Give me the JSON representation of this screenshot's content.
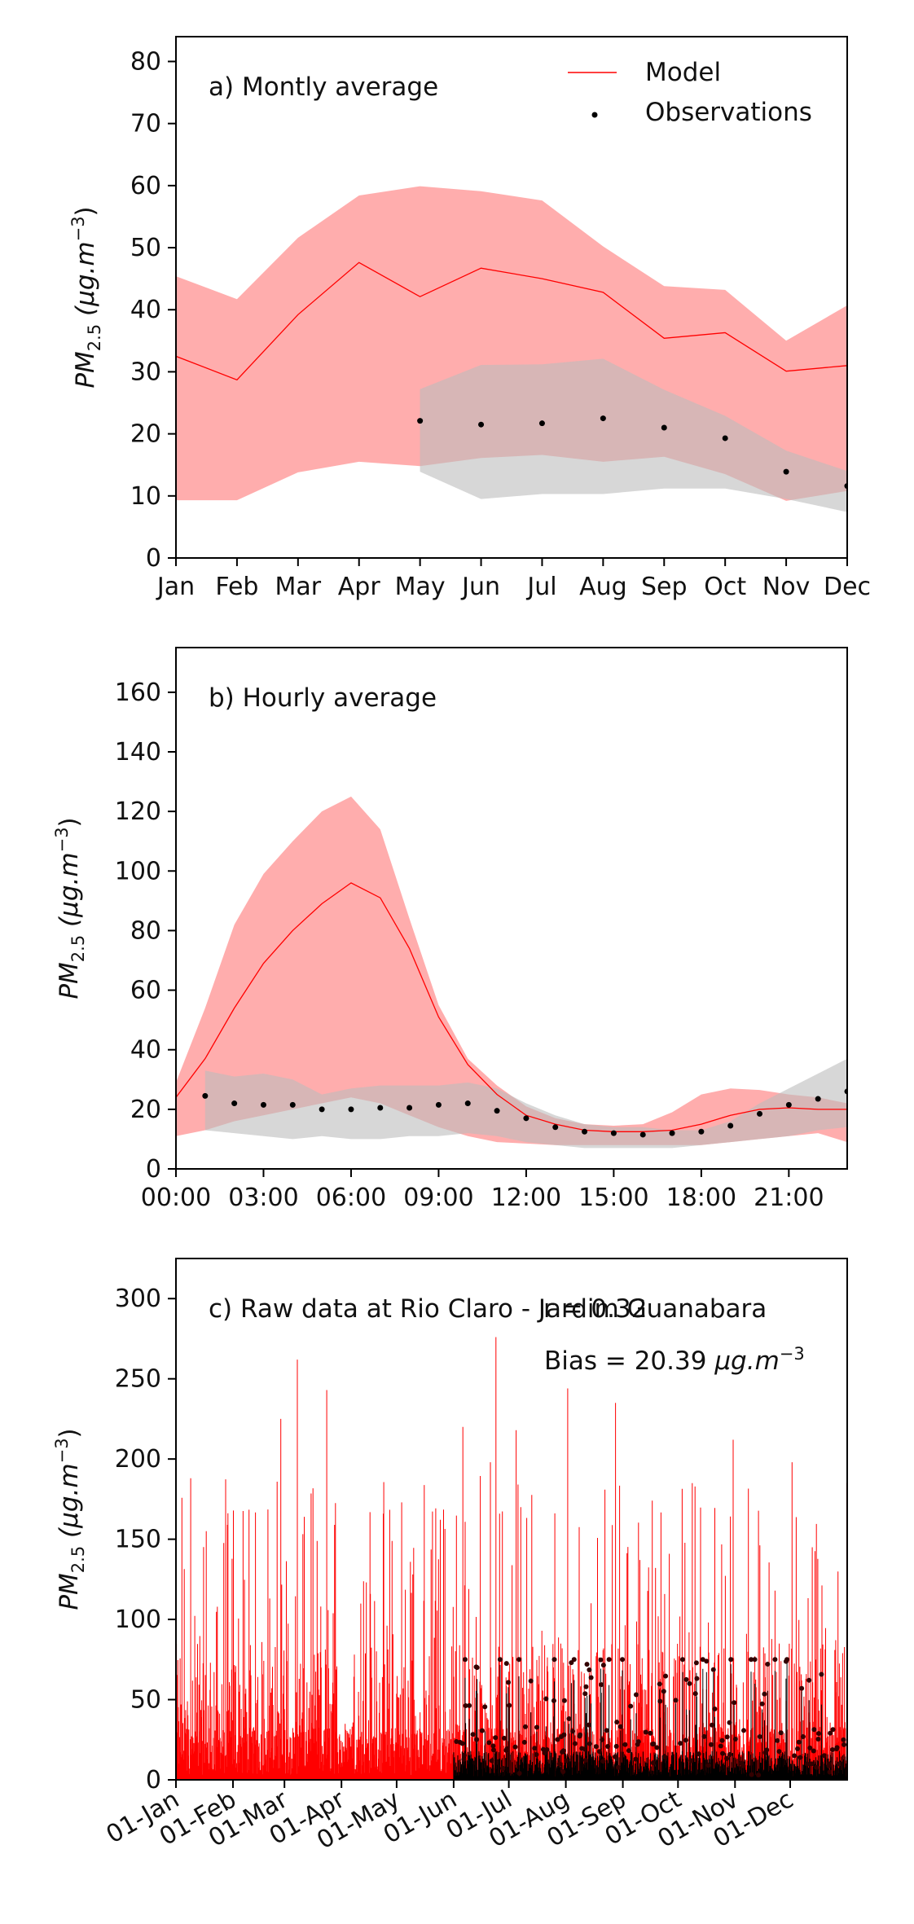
{
  "colors": {
    "model": "#ff0000",
    "model_band": "#ffa8a8",
    "obs": "#000000",
    "obs_band": "#bdbdbd"
  },
  "chart_data": [
    {
      "type": "line",
      "title": "a) Montly average",
      "ylabel_base": "PM",
      "ylabel_sub": "2.5",
      "ylabel_units": "(μg.m",
      "ylabel_exp": "−3",
      "ylabel_close": ")",
      "ylim": [
        0,
        84
      ],
      "yticks": [
        0,
        10,
        20,
        30,
        40,
        50,
        60,
        70,
        80
      ],
      "xlim": [
        1,
        12
      ],
      "categories": [
        "Jan",
        "Feb",
        "Mar",
        "Apr",
        "May",
        "Jun",
        "Jul",
        "Aug",
        "Sep",
        "Oct",
        "Nov",
        "Dec"
      ],
      "legend": {
        "placement": "top-right",
        "model_label": "Model",
        "obs_label": "Observations"
      },
      "model": {
        "x": [
          1,
          2,
          3,
          4,
          5,
          6,
          7,
          8,
          9,
          10,
          11,
          12
        ],
        "mean": [
          32.5,
          28.7,
          39.2,
          47.6,
          42.1,
          46.7,
          45.0,
          42.8,
          35.4,
          36.3,
          30.1,
          31.0
        ],
        "upper": [
          45.4,
          41.7,
          51.6,
          58.4,
          59.9,
          59.1,
          57.6,
          50.2,
          43.8,
          43.2,
          35.0,
          40.7
        ],
        "lower": [
          9.3,
          9.3,
          13.8,
          15.5,
          14.8,
          16.1,
          16.6,
          15.5,
          16.3,
          13.5,
          9.2,
          10.8
        ]
      },
      "observations": {
        "x": [
          5,
          6,
          7,
          8,
          9,
          10,
          11,
          12
        ],
        "mean": [
          22.1,
          21.5,
          21.7,
          22.5,
          21.0,
          19.3,
          13.9,
          11.6
        ],
        "upper": [
          27.2,
          31.1,
          31.2,
          32.1,
          27.1,
          22.9,
          17.3,
          14.0
        ],
        "lower": [
          13.9,
          9.5,
          10.3,
          10.3,
          11.2,
          11.2,
          9.5,
          7.4
        ]
      }
    },
    {
      "type": "line",
      "title": "b) Hourly average",
      "ylabel_base": "PM",
      "ylabel_sub": "2.5",
      "ylabel_units": "(μg.m",
      "ylabel_exp": "−3",
      "ylabel_close": ")",
      "ylim": [
        0,
        175
      ],
      "yticks": [
        0,
        20,
        40,
        60,
        80,
        100,
        120,
        140,
        160
      ],
      "xlim": [
        0,
        23
      ],
      "xtick_values": [
        0,
        3,
        6,
        9,
        12,
        15,
        18,
        21
      ],
      "xtick_labels": [
        "00:00",
        "03:00",
        "06:00",
        "09:00",
        "12:00",
        "15:00",
        "18:00",
        "21:00"
      ],
      "model": {
        "x": [
          0,
          1,
          2,
          3,
          4,
          5,
          6,
          7,
          8,
          9,
          10,
          11,
          12,
          13,
          14,
          15,
          16,
          17,
          18,
          19,
          20,
          21,
          22,
          23
        ],
        "mean": [
          24,
          37,
          54,
          69,
          80,
          89,
          96,
          91,
          74,
          51,
          35,
          25,
          18,
          15,
          13,
          12.5,
          12.5,
          13,
          15,
          18,
          20,
          20.5,
          20,
          20
        ],
        "upper": [
          29,
          54,
          82,
          99,
          110,
          120,
          125,
          114,
          84,
          55,
          37,
          28,
          21,
          17,
          15,
          14.5,
          15,
          19,
          25,
          27,
          26.5,
          25,
          24,
          22
        ],
        "lower": [
          11,
          13,
          16,
          18,
          20,
          22,
          24,
          22,
          18,
          14,
          11,
          9,
          8.5,
          8,
          8,
          8,
          8,
          8,
          8,
          9,
          10,
          11,
          12,
          9
        ]
      },
      "observations": {
        "x": [
          1,
          2,
          3,
          4,
          5,
          6,
          7,
          8,
          9,
          10,
          11,
          12,
          13,
          14,
          15,
          16,
          17,
          18,
          19,
          20,
          21,
          22,
          23
        ],
        "mean": [
          24.5,
          22,
          21.5,
          21.5,
          20,
          20,
          20.5,
          20.5,
          21.5,
          22,
          19.5,
          17,
          14,
          12.5,
          12,
          11.5,
          12,
          12.5,
          14.5,
          18.5,
          21.5,
          23.5,
          26
        ],
        "upper": [
          33,
          31,
          32,
          30,
          25,
          27,
          28,
          28,
          28,
          29,
          27,
          22,
          18,
          15,
          14,
          14,
          13,
          13,
          16,
          22,
          27,
          32,
          37
        ],
        "lower": [
          13,
          12,
          11,
          10,
          11,
          10,
          10,
          11,
          11,
          12,
          11,
          9,
          8,
          7,
          7,
          7,
          7,
          8,
          9,
          10,
          11,
          13,
          14
        ]
      }
    },
    {
      "type": "line",
      "title": "c) Raw data at Rio Claro - Jardim Guanabara",
      "annotation_r": "r = 0.32",
      "annotation_bias_prefix": "Bias = 20.39 ",
      "annotation_bias_units": "μg.m",
      "annotation_bias_exp": "−3",
      "ylabel_base": "PM",
      "ylabel_sub": "2.5",
      "ylabel_units": "(μg.m",
      "ylabel_exp": "−3",
      "ylabel_close": ")",
      "ylim": [
        0,
        325
      ],
      "yticks": [
        0,
        50,
        100,
        150,
        200,
        250,
        300
      ],
      "xlim": [
        1,
        366
      ],
      "xtick_values": [
        1,
        32,
        60,
        91,
        121,
        152,
        182,
        213,
        244,
        274,
        305,
        335
      ],
      "xtick_labels": [
        "01-Jan",
        "01-Feb",
        "01-Mar",
        "01-Apr",
        "01-May",
        "01-Jun",
        "01-Jul",
        "01-Aug",
        "01-Sep",
        "01-Oct",
        "01-Nov",
        "01-Dec"
      ],
      "observations_start_day": 152,
      "model_peaks": [
        {
          "day": 9,
          "value": 188
        },
        {
          "day": 58,
          "value": 225
        },
        {
          "day": 67,
          "value": 262
        },
        {
          "day": 83,
          "value": 243
        },
        {
          "day": 157,
          "value": 220
        },
        {
          "day": 172,
          "value": 198
        },
        {
          "day": 175,
          "value": 276
        },
        {
          "day": 186,
          "value": 218
        },
        {
          "day": 214,
          "value": 244
        },
        {
          "day": 240,
          "value": 235
        },
        {
          "day": 304,
          "value": 212
        },
        {
          "day": 336,
          "value": 198
        }
      ]
    }
  ]
}
